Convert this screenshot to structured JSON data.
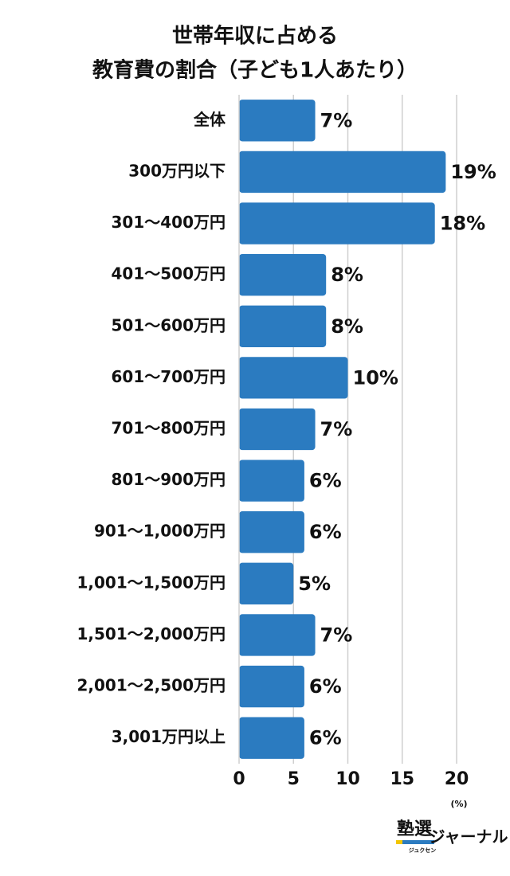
{
  "chart_data": {
    "type": "bar",
    "orientation": "horizontal",
    "title": [
      "世帯年収に占める",
      "教育費の割合（子ども1人あたり）"
    ],
    "categories": [
      "全体",
      "300万円以下",
      "301〜400万円",
      "401〜500万円",
      "501〜600万円",
      "601〜700万円",
      "701〜800万円",
      "801〜900万円",
      "901〜1,000万円",
      "1,001〜1,500万円",
      "1,501〜2,000万円",
      "2,001〜2,500万円",
      "3,001万円以上"
    ],
    "values": [
      7,
      19,
      18,
      8,
      8,
      10,
      7,
      6,
      6,
      5,
      7,
      6,
      6
    ],
    "value_labels": [
      "7%",
      "19%",
      "18%",
      "8%",
      "8%",
      "10%",
      "7%",
      "6%",
      "6%",
      "5%",
      "7%",
      "6%",
      "6%"
    ],
    "color": "#2b7bc0",
    "xlim": [
      0,
      20
    ],
    "xticks": [
      0,
      5,
      10,
      15,
      20
    ],
    "x_label": "(%)",
    "grid": true
  },
  "logo": {
    "main": "塾選",
    "ruby": "ジュクセン",
    "sub": "ジャーナル"
  }
}
